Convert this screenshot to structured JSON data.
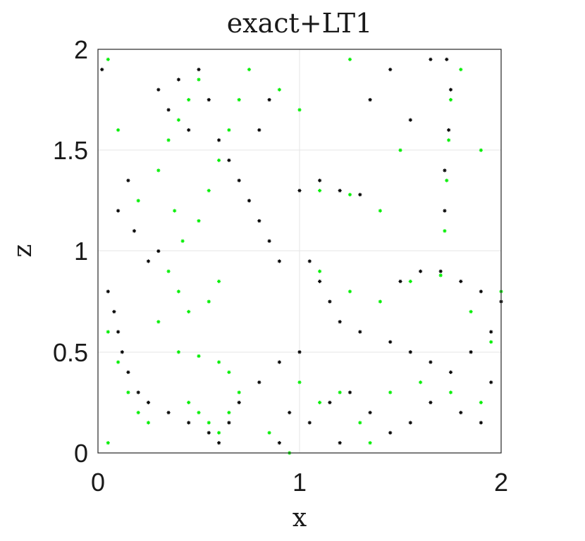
{
  "chart_data": {
    "type": "scatter",
    "title": "exact+LT1",
    "xlabel": "x",
    "ylabel": "z",
    "xlim": [
      0,
      2
    ],
    "ylim": [
      0,
      2
    ],
    "xticks": [
      "0",
      "1",
      "2"
    ],
    "yticks": [
      "0",
      "0.5",
      "1",
      "1.5",
      "2"
    ],
    "grid": true,
    "marker": "asterisk",
    "series": [
      {
        "color": "#000000",
        "points": [
          [
            0.3,
            1.8
          ],
          [
            0.35,
            1.7
          ],
          [
            0.4,
            1.85
          ],
          [
            0.45,
            1.6
          ],
          [
            0.5,
            1.9
          ],
          [
            0.55,
            1.75
          ],
          [
            0.6,
            1.55
          ],
          [
            0.65,
            1.45
          ],
          [
            0.7,
            1.35
          ],
          [
            0.75,
            1.25
          ],
          [
            0.8,
            1.15
          ],
          [
            0.85,
            1.05
          ],
          [
            0.9,
            0.95
          ],
          [
            1.0,
            1.3
          ],
          [
            1.1,
            1.35
          ],
          [
            1.2,
            1.3
          ],
          [
            1.3,
            1.28
          ],
          [
            1.05,
            0.95
          ],
          [
            1.1,
            0.85
          ],
          [
            1.15,
            0.75
          ],
          [
            1.2,
            0.65
          ],
          [
            1.3,
            0.6
          ],
          [
            1.45,
            0.55
          ],
          [
            1.55,
            0.5
          ],
          [
            1.65,
            0.45
          ],
          [
            1.75,
            0.4
          ],
          [
            1.85,
            0.5
          ],
          [
            1.95,
            0.6
          ],
          [
            1.5,
            0.85
          ],
          [
            1.6,
            0.9
          ],
          [
            1.7,
            0.9
          ],
          [
            1.8,
            0.85
          ],
          [
            1.9,
            0.8
          ],
          [
            2.0,
            0.75
          ],
          [
            1.72,
            1.2
          ],
          [
            1.72,
            1.4
          ],
          [
            1.74,
            1.6
          ],
          [
            1.75,
            1.8
          ],
          [
            1.73,
            1.95
          ],
          [
            1.65,
            1.95
          ],
          [
            0.05,
            0.8
          ],
          [
            0.08,
            0.7
          ],
          [
            0.1,
            0.6
          ],
          [
            0.12,
            0.5
          ],
          [
            0.15,
            0.4
          ],
          [
            0.2,
            0.3
          ],
          [
            0.25,
            0.25
          ],
          [
            0.35,
            0.2
          ],
          [
            0.45,
            0.15
          ],
          [
            0.55,
            0.1
          ],
          [
            0.6,
            0.05
          ],
          [
            0.65,
            0.15
          ],
          [
            0.7,
            0.25
          ],
          [
            0.8,
            0.35
          ],
          [
            0.9,
            0.45
          ],
          [
            1.0,
            0.5
          ],
          [
            0.95,
            0.2
          ],
          [
            1.05,
            0.15
          ],
          [
            1.15,
            0.25
          ],
          [
            1.25,
            0.3
          ],
          [
            1.35,
            0.2
          ],
          [
            1.45,
            0.1
          ],
          [
            1.55,
            0.15
          ],
          [
            1.65,
            0.25
          ],
          [
            1.8,
            0.2
          ],
          [
            1.9,
            0.15
          ],
          [
            1.95,
            0.35
          ],
          [
            0.1,
            1.2
          ],
          [
            0.15,
            1.35
          ],
          [
            0.18,
            1.1
          ],
          [
            0.8,
            1.6
          ],
          [
            0.85,
            1.75
          ],
          [
            1.45,
            1.9
          ],
          [
            1.35,
            1.75
          ],
          [
            1.55,
            1.65
          ],
          [
            0.02,
            1.9
          ],
          [
            0.25,
            0.95
          ],
          [
            0.3,
            1.0
          ],
          [
            1.2,
            0.05
          ],
          [
            0.9,
            0.05
          ]
        ]
      },
      {
        "color": "#00ee00",
        "points": [
          [
            0.3,
            1.4
          ],
          [
            0.35,
            1.55
          ],
          [
            0.4,
            1.65
          ],
          [
            0.45,
            1.75
          ],
          [
            0.5,
            1.85
          ],
          [
            0.38,
            1.2
          ],
          [
            0.42,
            1.05
          ],
          [
            0.5,
            1.15
          ],
          [
            0.55,
            1.3
          ],
          [
            0.6,
            1.45
          ],
          [
            0.65,
            1.6
          ],
          [
            0.7,
            1.75
          ],
          [
            0.75,
            1.9
          ],
          [
            0.35,
            0.9
          ],
          [
            0.4,
            0.8
          ],
          [
            0.45,
            0.7
          ],
          [
            0.55,
            0.75
          ],
          [
            0.6,
            0.85
          ],
          [
            0.4,
            0.5
          ],
          [
            0.5,
            0.48
          ],
          [
            0.6,
            0.45
          ],
          [
            0.65,
            0.4
          ],
          [
            0.45,
            0.25
          ],
          [
            0.5,
            0.2
          ],
          [
            0.55,
            0.15
          ],
          [
            0.6,
            0.1
          ],
          [
            0.65,
            0.2
          ],
          [
            0.7,
            0.3
          ],
          [
            0.05,
            0.6
          ],
          [
            0.1,
            0.45
          ],
          [
            0.15,
            0.3
          ],
          [
            0.2,
            0.2
          ],
          [
            0.25,
            0.15
          ],
          [
            1.1,
            1.3
          ],
          [
            1.25,
            1.28
          ],
          [
            1.4,
            1.2
          ],
          [
            1.1,
            0.9
          ],
          [
            1.25,
            0.8
          ],
          [
            1.4,
            0.75
          ],
          [
            1.55,
            0.85
          ],
          [
            1.7,
            0.88
          ],
          [
            1.85,
            0.7
          ],
          [
            1.95,
            0.55
          ],
          [
            1.72,
            1.1
          ],
          [
            1.73,
            1.35
          ],
          [
            1.74,
            1.55
          ],
          [
            1.75,
            1.75
          ],
          [
            1.8,
            1.9
          ],
          [
            1.0,
            0.35
          ],
          [
            1.1,
            0.25
          ],
          [
            1.2,
            0.3
          ],
          [
            1.3,
            0.15
          ],
          [
            1.45,
            0.3
          ],
          [
            1.6,
            0.35
          ],
          [
            1.75,
            0.3
          ],
          [
            1.9,
            0.25
          ],
          [
            0.05,
            1.95
          ],
          [
            0.1,
            1.6
          ],
          [
            0.2,
            1.25
          ],
          [
            0.9,
            1.8
          ],
          [
            1.0,
            1.7
          ],
          [
            1.25,
            1.95
          ],
          [
            1.5,
            1.5
          ],
          [
            1.9,
            1.5
          ],
          [
            0.05,
            0.05
          ],
          [
            0.85,
            0.1
          ],
          [
            0.95,
            0.0
          ],
          [
            1.35,
            0.05
          ],
          [
            2.0,
            0.8
          ],
          [
            0.3,
            0.65
          ]
        ]
      }
    ]
  }
}
